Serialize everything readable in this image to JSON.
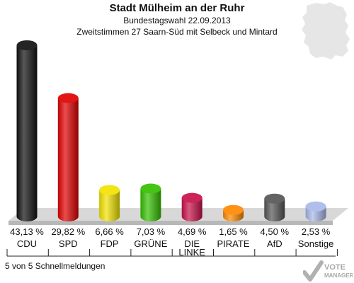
{
  "header": {
    "title": "Stadt Mülheim an der Ruhr",
    "subtitle": "Bundestagswahl 22.09.2013",
    "subtitle2": "Zweitstimmen 27 Saarn-Süd mit Selbeck und Mintard"
  },
  "chart_data": {
    "type": "bar",
    "categories": [
      "CDU",
      "SPD",
      "FDP",
      "GRÜNE",
      "DIE LINKE",
      "PIRATE",
      "AfD",
      "Sonstige"
    ],
    "values": [
      43.13,
      29.82,
      6.66,
      7.03,
      4.69,
      1.65,
      4.5,
      2.53
    ],
    "value_labels": [
      "43,13 %",
      "29,82 %",
      "6,66 %",
      "7,03 %",
      "4,69 %",
      "1,65 %",
      "4,50 %",
      "2,53 %"
    ],
    "colors": [
      "#111111",
      "#e00000",
      "#f2e300",
      "#34c000",
      "#c8104a",
      "#ff8800",
      "#555555",
      "#a8b8e8"
    ],
    "bar_style": "3d-cylinder",
    "grid": false,
    "legend": "none"
  },
  "footer": {
    "text": "5 von 5 Schnellmeldungen"
  },
  "badge": {
    "line1": "VOTE",
    "line2": "MANAGER"
  }
}
